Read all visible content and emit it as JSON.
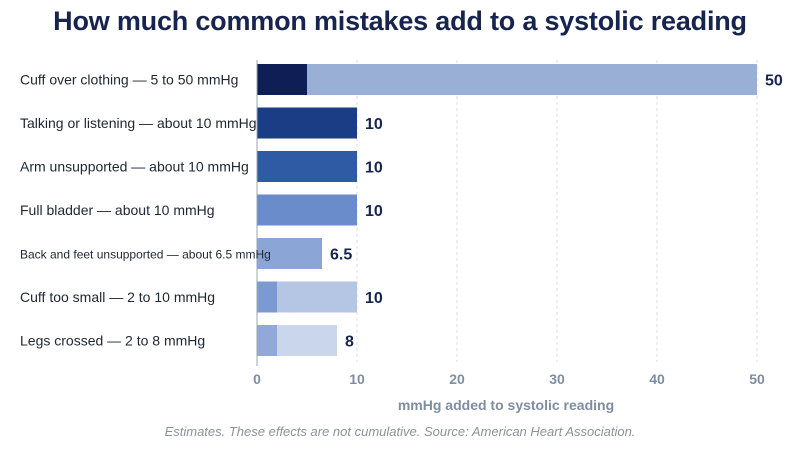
{
  "chart_data": {
    "type": "bar",
    "orientation": "horizontal",
    "title": "How much common mistakes add to a systolic reading",
    "xlabel": "mmHg added to systolic reading",
    "xlim": [
      0,
      50
    ],
    "xticks": [
      "0",
      "10",
      "20",
      "30",
      "40",
      "50"
    ],
    "grid": true,
    "note": "Estimates. These effects are not cumulative. Source: American Heart Association.",
    "bars": [
      {
        "label": "Cuff over clothing — 5 to 50 mmHg",
        "low": 5,
        "high": 50,
        "value_label": "50",
        "low_color": "#0f1f55",
        "range_color": "#9aafd5"
      },
      {
        "label": "Talking or listening — about 10 mmHg",
        "low": 10,
        "high": 10,
        "value_label": "10",
        "low_color": "#1b3d86",
        "range_color": "#1b3d86"
      },
      {
        "label": "Arm unsupported — about 10 mmHg",
        "low": 10,
        "high": 10,
        "value_label": "10",
        "low_color": "#2f5aa4",
        "range_color": "#2f5aa4"
      },
      {
        "label": "Full bladder — about 10 mmHg",
        "low": 10,
        "high": 10,
        "value_label": "10",
        "low_color": "#6b8ccb",
        "range_color": "#6b8ccb"
      },
      {
        "label": "Back and feet unsupported — about 6.5 mmHg",
        "low": 6.5,
        "high": 6.5,
        "value_label": "6.5",
        "low_color": "#8ba6d6",
        "range_color": "#8ba6d6"
      },
      {
        "label": "Cuff too small — 2 to 10 mmHg",
        "low": 2,
        "high": 10,
        "value_label": "10",
        "low_color": "#7b9ad2",
        "range_color": "#b5c6e4"
      },
      {
        "label": "Legs crossed — 2 to 8 mmHg",
        "low": 2,
        "high": 8,
        "value_label": "8",
        "low_color": "#90a9d8",
        "range_color": "#cad6ec"
      }
    ]
  }
}
